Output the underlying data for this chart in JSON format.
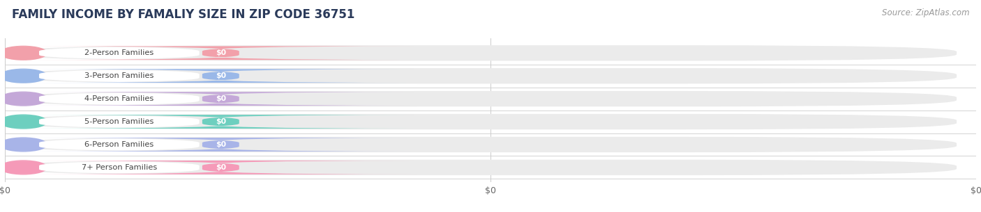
{
  "title": "FAMILY INCOME BY FAMALIY SIZE IN ZIP CODE 36751",
  "source": "Source: ZipAtlas.com",
  "categories": [
    "2-Person Families",
    "3-Person Families",
    "4-Person Families",
    "5-Person Families",
    "6-Person Families",
    "7+ Person Families"
  ],
  "values": [
    0,
    0,
    0,
    0,
    0,
    0
  ],
  "bar_colors": [
    "#f2a0aa",
    "#9ab8e8",
    "#c4a8d8",
    "#6dcfbf",
    "#a8b4e8",
    "#f59ab8"
  ],
  "bar_bg_color": "#ebebeb",
  "background_color": "#ffffff",
  "grid_color": "#cccccc",
  "title_fontsize": 12,
  "source_fontsize": 8.5,
  "tick_labels": [
    "$0",
    "$0",
    "$0"
  ],
  "title_color": "#2a3a5a",
  "label_color": "#444444",
  "source_color": "#999999"
}
